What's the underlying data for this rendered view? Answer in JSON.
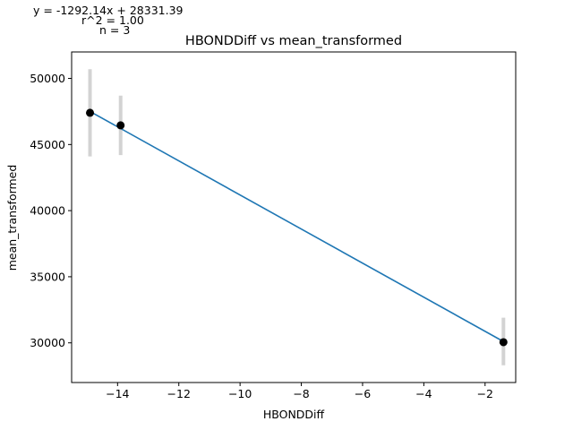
{
  "annotation": {
    "equation": "y = -1292.14x + 28331.39",
    "r2": "r^2 = 1.00",
    "n": "n = 3"
  },
  "chart_data": {
    "type": "scatter",
    "title": "HBONDDiff vs mean_transformed",
    "xlabel": "HBONDDiff",
    "ylabel": "mean_transformed",
    "xlim": [
      -15.5,
      -1.0
    ],
    "ylim": [
      27000,
      52000
    ],
    "xticks": [
      -14,
      -12,
      -10,
      -8,
      -6,
      -4,
      -2
    ],
    "xtick_labels": [
      "−14",
      "−12",
      "−10",
      "−8",
      "−6",
      "−4",
      "−2"
    ],
    "yticks": [
      30000,
      35000,
      40000,
      45000,
      50000
    ],
    "ytick_labels": [
      "30000",
      "35000",
      "40000",
      "45000",
      "50000"
    ],
    "points": [
      {
        "x": -14.9,
        "y": 47400,
        "err_low": 44100,
        "err_high": 50700
      },
      {
        "x": -13.9,
        "y": 46450,
        "err_low": 44200,
        "err_high": 48700
      },
      {
        "x": -1.4,
        "y": 30050,
        "err_low": 28300,
        "err_high": 31900
      }
    ],
    "fit_line": {
      "x": [
        -14.9,
        -1.4
      ],
      "y": [
        47500,
        30100
      ]
    },
    "colors": {
      "points": "#000000",
      "line": "#1f77b4",
      "errorbars": "#d3d3d3"
    },
    "grid": false
  }
}
